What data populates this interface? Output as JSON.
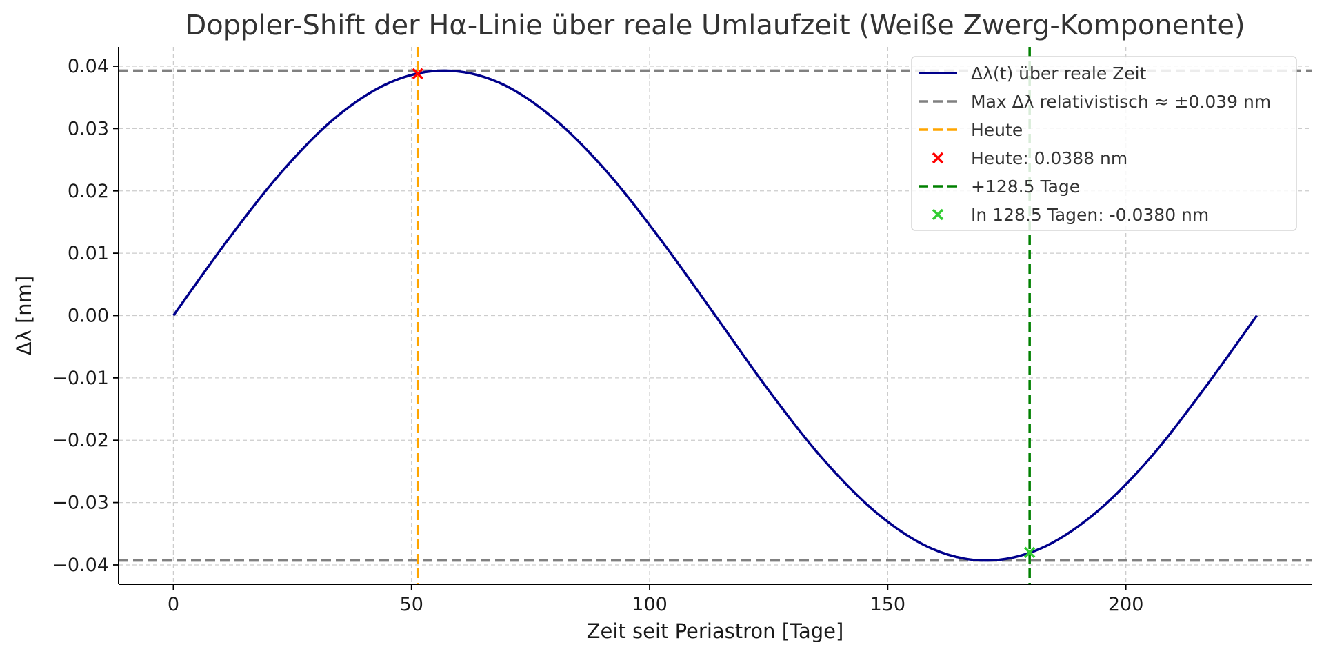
{
  "chart_data": {
    "type": "line",
    "title": "Doppler-Shift der Hα-Linie über reale Umlaufzeit (Weiße Zwerg-Komponente)",
    "xlabel": "Zeit seit Periastron [Tage]",
    "ylabel": "Δλ [nm]",
    "xlim": [
      -11.5,
      239
    ],
    "ylim": [
      -0.0431,
      0.0431
    ],
    "x_ticks": [
      0,
      50,
      100,
      150,
      200
    ],
    "x_tick_labels": [
      "0",
      "50",
      "100",
      "150",
      "200"
    ],
    "y_ticks": [
      0.04,
      0.03,
      0.02,
      0.01,
      0.0,
      -0.01,
      -0.02,
      -0.03,
      -0.04
    ],
    "y_tick_labels": [
      "0.04",
      "0.03",
      "0.02",
      "0.01",
      "0.00",
      "−0.01",
      "−0.02",
      "−0.03",
      "−0.04"
    ],
    "grid": true,
    "legend_position": "top-right",
    "series": [
      {
        "name": "Δλ(t) über reale Zeit",
        "kind": "line",
        "color": "#00008b",
        "x": [
          0,
          11.4,
          22.8,
          34.1,
          45.5,
          56.9,
          68.3,
          79.6,
          91.0,
          102.4,
          113.8,
          125.1,
          136.5,
          147.9,
          159.3,
          170.6,
          182.0,
          193.4,
          204.8,
          216.1,
          227.5
        ],
        "y": [
          0.0,
          0.0121,
          0.0231,
          0.0318,
          0.0374,
          0.0393,
          0.0374,
          0.0318,
          0.0231,
          0.0121,
          0.0,
          -0.0121,
          -0.0231,
          -0.0318,
          -0.0374,
          -0.0393,
          -0.0374,
          -0.0318,
          -0.0231,
          -0.0121,
          0.0
        ]
      },
      {
        "name": "Max Δλ relativistisch ≈ ±0.039 nm",
        "kind": "hline",
        "color": "#808080",
        "y": [
          0.0393,
          -0.0393
        ]
      },
      {
        "name": "Heute",
        "kind": "vline",
        "color": "#ffa500",
        "x": [
          51.3
        ]
      },
      {
        "name": "Heute: 0.0388 nm",
        "kind": "marker",
        "color": "#ff0000",
        "x": [
          51.3
        ],
        "y": [
          0.0388
        ]
      },
      {
        "name": "+128.5 Tage",
        "kind": "vline",
        "color": "#008000",
        "x": [
          179.8
        ]
      },
      {
        "name": "In 128.5 Tagen: -0.0380 nm",
        "kind": "marker",
        "color": "#32cd32",
        "x": [
          179.8
        ],
        "y": [
          -0.038
        ]
      }
    ]
  }
}
